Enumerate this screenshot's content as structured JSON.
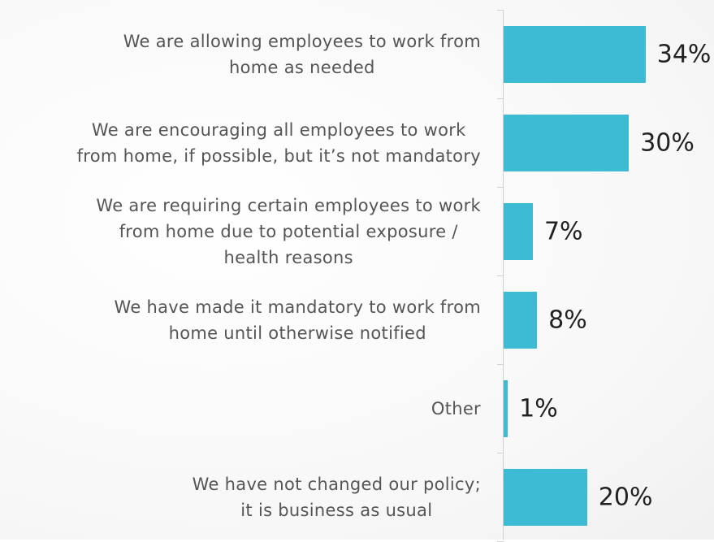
{
  "chart_data": {
    "type": "bar",
    "orientation": "horizontal",
    "categories": [
      [
        "We are allowing employees to work from",
        "home as needed"
      ],
      [
        "We are encouraging all employees to work",
        "from home, if possible, but it’s not mandatory"
      ],
      [
        "We are requiring certain employees to work",
        "from home due to potential exposure /",
        "health reasons"
      ],
      [
        "We have made it mandatory to work from",
        "home until otherwise notified"
      ],
      [
        "Other"
      ],
      [
        "We have not changed our policy;",
        "it is business as usual"
      ]
    ],
    "values": [
      34,
      30,
      7,
      8,
      1,
      20
    ],
    "value_labels": [
      "34%",
      "30%",
      "7%",
      "8%",
      "1%",
      "20%"
    ],
    "color": "#3ebbd4"
  }
}
